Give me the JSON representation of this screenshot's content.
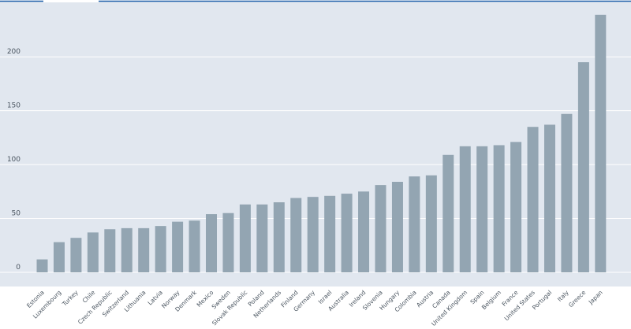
{
  "colors": {
    "plot_background": "#e1e7ef",
    "bar": "#93a5b2",
    "gridline": "#ffffff",
    "top_rule": "#1b5ea8",
    "text": "#4a5560"
  },
  "chart_data": {
    "type": "bar",
    "title": "",
    "xlabel": "",
    "ylabel": "",
    "ylim": [
      0,
      250
    ],
    "yticks": [
      0,
      50,
      100,
      150,
      200
    ],
    "grid": true,
    "legend": "none",
    "categories": [
      "Estonia",
      "Luxembourg",
      "Turkey",
      "Chile",
      "Czech Republic",
      "Switzerland",
      "Lithuania",
      "Latvia",
      "Norway",
      "Denmark",
      "Mexico",
      "Sweden",
      "Slovak Republic",
      "Poland",
      "Netherlands",
      "Finland",
      "Germany",
      "Israel",
      "Australia",
      "Ireland",
      "Slovenia",
      "Hungary",
      "Colombia",
      "Austria",
      "Canada",
      "United Kingdom",
      "Spain",
      "Belgium",
      "France",
      "United States",
      "Portugal",
      "Italy",
      "Greece",
      "Japan"
    ],
    "values": [
      12,
      28,
      32,
      37,
      40,
      41,
      41,
      43,
      47,
      48,
      54,
      55,
      63,
      63,
      65,
      69,
      70,
      71,
      73,
      75,
      81,
      84,
      89,
      90,
      109,
      117,
      117,
      118,
      121,
      135,
      137,
      147,
      195,
      239
    ]
  }
}
